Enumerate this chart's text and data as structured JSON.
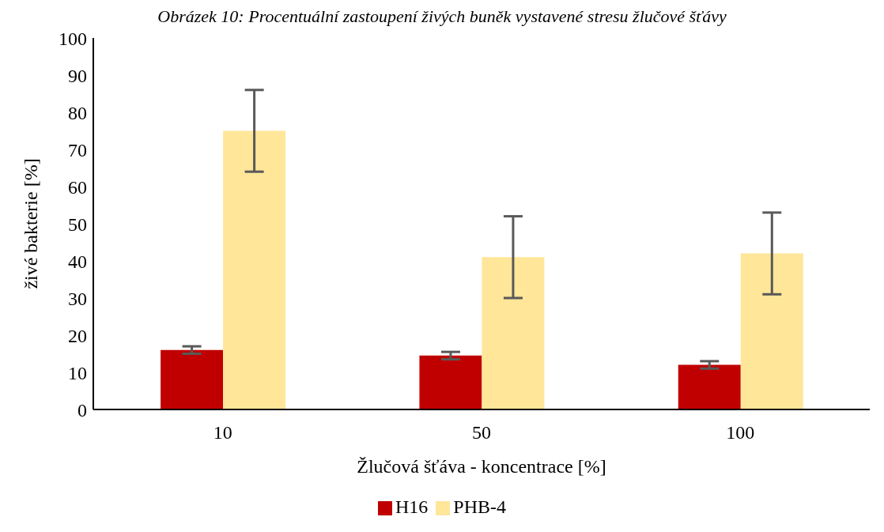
{
  "chart_data": {
    "type": "bar",
    "title": "Obrázek 10: Procentuální zastoupení živých buněk vystavené stresu žlučové šťávy",
    "xlabel": "Žlučová šťáva - koncentrace [%]",
    "ylabel": "živé bakterie [%]",
    "categories": [
      "10",
      "50",
      "100"
    ],
    "series": [
      {
        "name": "H16",
        "color": "#c00000",
        "values": [
          16,
          14.5,
          12
        ],
        "errors": [
          1,
          1,
          1
        ]
      },
      {
        "name": "PHB-4",
        "color": "#ffe699",
        "values": [
          75,
          41,
          42
        ],
        "errors": [
          11,
          11,
          11
        ]
      }
    ],
    "ylim": [
      0,
      100
    ],
    "yticks": [
      0,
      10,
      20,
      30,
      40,
      50,
      60,
      70,
      80,
      90,
      100
    ],
    "grid": false,
    "legend": "bottom"
  }
}
